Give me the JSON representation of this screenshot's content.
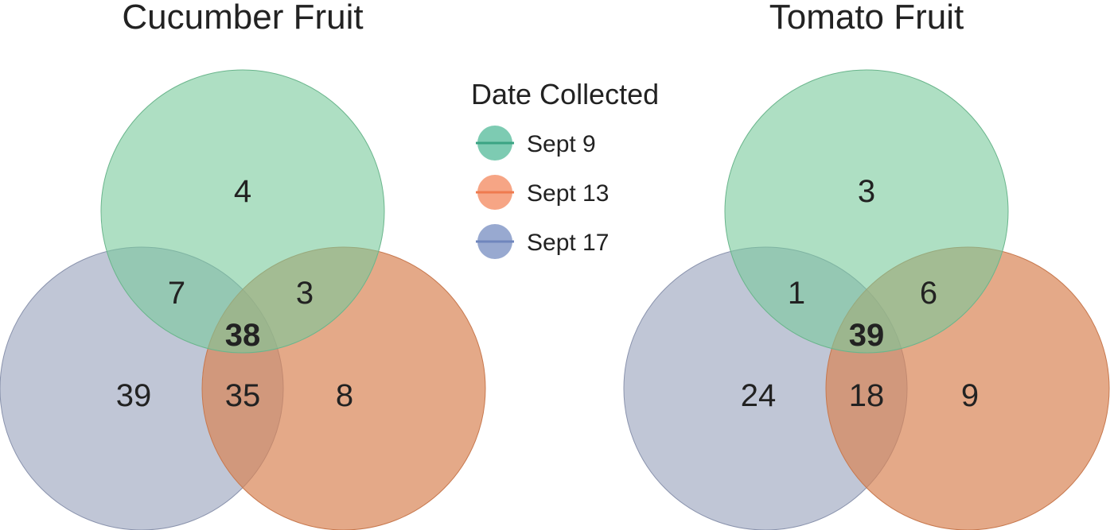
{
  "colors": {
    "sept9": "#66c2a5",
    "sept13": "#fc8d62",
    "sept17": "#8da0cb",
    "sept9_fill": "#9fd8b9",
    "sept13_fill": "#e3a483",
    "sept17_fill": "#c0c6d6",
    "text": "#222222"
  },
  "legend": {
    "title": "Date Collected",
    "items": [
      {
        "label": "Sept 9",
        "color": "#66c2a5"
      },
      {
        "label": "Sept 13",
        "color": "#fc8d62"
      },
      {
        "label": "Sept 17",
        "color": "#8da0cb"
      }
    ]
  },
  "venns": [
    {
      "title": "Cucumber Fruit",
      "sets": [
        "Sept 9",
        "Sept 13",
        "Sept 17"
      ],
      "regions": {
        "sept9_only": "4",
        "sept9_sept17": "7",
        "sept9_sept13": "3",
        "all_three": "38",
        "sept17_only": "39",
        "sept13_sept17": "35",
        "sept13_only": "8"
      }
    },
    {
      "title": "Tomato Fruit",
      "sets": [
        "Sept 9",
        "Sept 13",
        "Sept 17"
      ],
      "regions": {
        "sept9_only": "3",
        "sept9_sept17": "1",
        "sept9_sept13": "6",
        "all_three": "39",
        "sept17_only": "24",
        "sept13_sept17": "18",
        "sept13_only": "9"
      }
    }
  ]
}
